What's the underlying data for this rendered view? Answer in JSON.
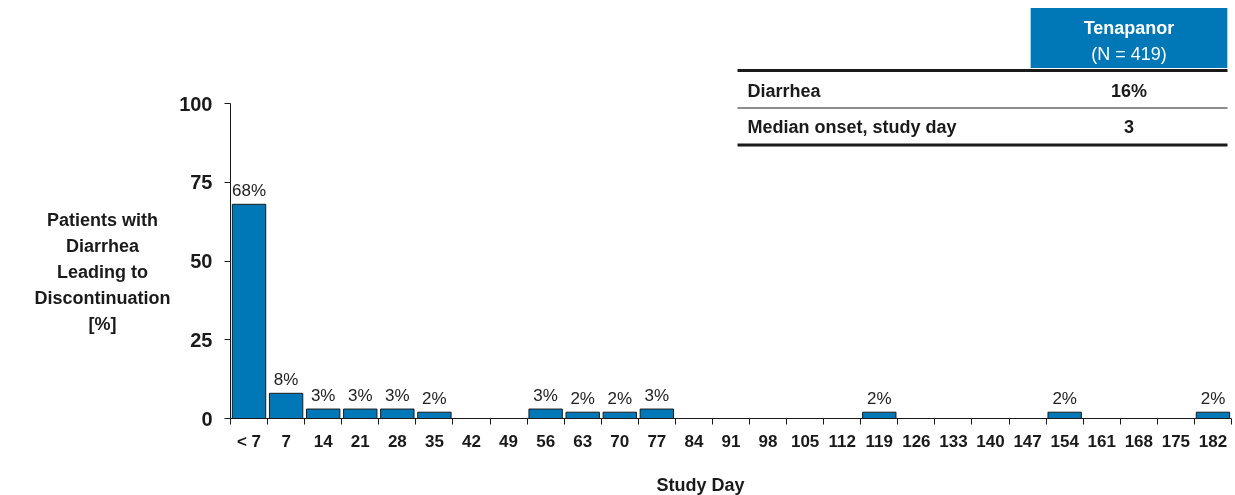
{
  "chart_data": {
    "type": "bar",
    "xlabel": "Study Day",
    "ylabel": "Patients with Diarrhea Leading to Discontinuation [%]",
    "categories": [
      "< 7",
      "7",
      "14",
      "21",
      "28",
      "35",
      "42",
      "49",
      "56",
      "63",
      "70",
      "77",
      "84",
      "91",
      "98",
      "105",
      "112",
      "119",
      "126",
      "133",
      "140",
      "147",
      "154",
      "161",
      "168",
      "175",
      "182"
    ],
    "values": [
      68,
      8,
      3,
      3,
      3,
      2,
      null,
      null,
      3,
      2,
      2,
      3,
      null,
      null,
      null,
      null,
      null,
      2,
      null,
      null,
      null,
      null,
      2,
      null,
      null,
      null,
      2
    ],
    "value_labels": [
      "68%",
      "8%",
      "3%",
      "3%",
      "3%",
      "2%",
      null,
      null,
      "3%",
      "2%",
      "2%",
      "3%",
      null,
      null,
      null,
      null,
      null,
      "2%",
      null,
      null,
      null,
      null,
      "2%",
      null,
      null,
      null,
      "2%"
    ],
    "color": "#0078b8",
    "ylim": [
      0,
      100
    ],
    "yticks": [
      0,
      25,
      50,
      75,
      100
    ],
    "annotations": [
      "Tenapanor",
      "(N = 419)",
      "Diarrhea",
      "16%",
      "Median onset, study day",
      "3"
    ]
  }
}
